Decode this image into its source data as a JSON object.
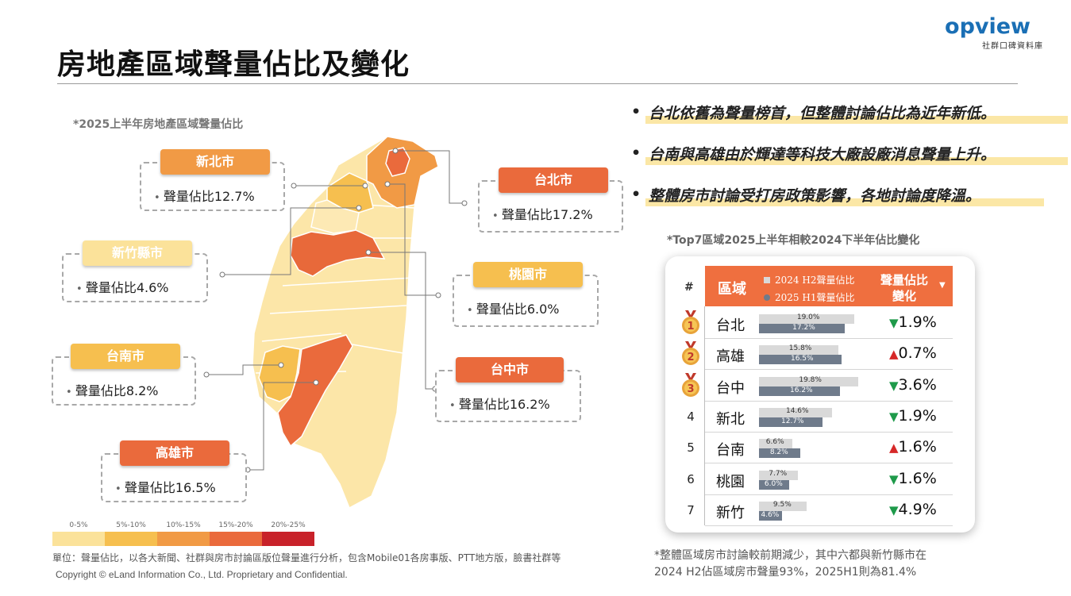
{
  "title": "房地產區域聲量佔比及變化",
  "logo": {
    "word_o": "o",
    "word_rest": "pview",
    "sub": "社群口碑資料庫"
  },
  "map_note": "*2025上半年房地產區域聲量佔比",
  "legend": [
    {
      "label": "0-5%",
      "color": "#fbe29a"
    },
    {
      "label": "5%-10%",
      "color": "#f6bf4f"
    },
    {
      "label": "10%-15%",
      "color": "#f19a45"
    },
    {
      "label": "15%-20%",
      "color": "#ea6a3c"
    },
    {
      "label": "20%-25%",
      "color": "#c8222a"
    }
  ],
  "callouts": [
    {
      "city": "新北市",
      "value": "聲量佔比12.7%",
      "color": "#f19a45"
    },
    {
      "city": "台北市",
      "value": "聲量佔比17.2%",
      "color": "#ea6a3c"
    },
    {
      "city": "新竹縣市",
      "value": "聲量佔比4.6%",
      "color": "#fbe29a"
    },
    {
      "city": "桃園市",
      "value": "聲量佔比6.0%",
      "color": "#f6bf4f"
    },
    {
      "city": "台南市",
      "value": "聲量佔比8.2%",
      "color": "#f6bf4f"
    },
    {
      "city": "台中市",
      "value": "聲量佔比16.2%",
      "color": "#ea6a3c"
    },
    {
      "city": "高雄市",
      "value": "聲量佔比16.5%",
      "color": "#ea6a3c"
    }
  ],
  "bullets": [
    "台北依舊為聲量榜首，但整體討論佔比為近年新低。",
    "台南與高雄由於輝達等科技大廠設廠消息聲量上升。",
    "整體房市討論受打房政策影響，各地討論度降溫。"
  ],
  "table_note": "*Top7區域2025上半年相較2024下半年佔比變化",
  "table_header": {
    "hash": "#",
    "region": "區域",
    "legend_h2": "2024 H2聲量佔比",
    "legend_h1": "2025 H1聲量佔比",
    "change_line1": "聲量佔比",
    "change_line2": "變化",
    "caret": "▼",
    "h2_color": "#d9d9d9",
    "h1_color": "#6f7b8b"
  },
  "chart_data": {
    "type": "bar",
    "categories": [
      "台北",
      "高雄",
      "台中",
      "新北",
      "台南",
      "桃園",
      "新竹"
    ],
    "ranks": [
      "1",
      "2",
      "3",
      "4",
      "5",
      "6",
      "7"
    ],
    "series": [
      {
        "name": "2024 H2聲量佔比",
        "values": [
          19.0,
          15.8,
          19.8,
          14.6,
          6.6,
          7.7,
          9.5
        ],
        "labels": [
          "19.0%",
          "15.8%",
          "19.8%",
          "14.6%",
          "6.6%",
          "7.7%",
          "9.5%"
        ]
      },
      {
        "name": "2025 H1聲量佔比",
        "values": [
          17.2,
          16.5,
          16.2,
          12.7,
          8.2,
          6.0,
          4.6
        ],
        "labels": [
          "17.2%",
          "16.5%",
          "16.2%",
          "12.7%",
          "8.2%",
          "6.0%",
          "4.6%"
        ]
      }
    ],
    "change": [
      "1.9%",
      "0.7%",
      "3.6%",
      "1.9%",
      "1.6%",
      "1.6%",
      "4.9%"
    ],
    "direction": [
      "down",
      "up",
      "down",
      "down",
      "up",
      "down",
      "down"
    ],
    "medal_colors": [
      "#e8a33a",
      "#e8a33a",
      "#e8a33a"
    ]
  },
  "footer_unit": "單位：聲量佔比，以各大新聞、社群與房市討論區版位聲量進行分析，包含Mobile01各房事版、PTT地方版，臉書社群等",
  "footer_copyright": "Copyright © eLand Information Co., Ltd. Proprietary and Confidential.",
  "bottom_note_line1": "*整體區域房市討論較前期減少，其中六都與新竹縣市在",
  "bottom_note_line2": "2024 H2佔區域房市聲量93%，2025H1則為81.4%"
}
